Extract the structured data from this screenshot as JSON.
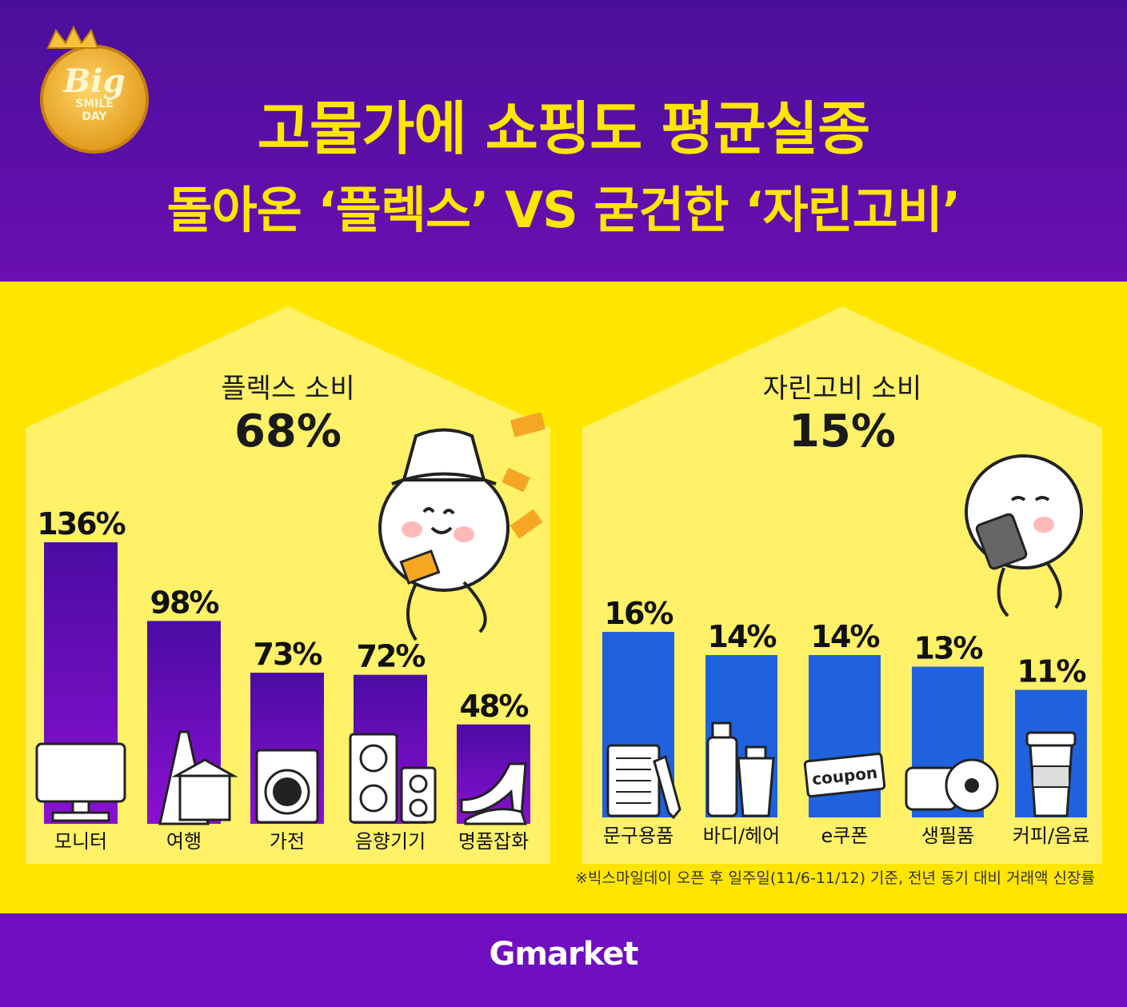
{
  "header": {
    "title_line1": "고물가에 쇼핑도 평균실종",
    "title_line2": "돌아온 ‘플렉스’ VS 굳건한 ‘자린고비’",
    "badge_text": [
      "Big",
      "SMILE",
      "DAY"
    ]
  },
  "colors": {
    "header_bg_top": "#4a0f99",
    "header_bg_bottom": "#6a0fb2",
    "panel_yellow": "#ffe500",
    "house_yellow": "#fff168",
    "title_yellow": "#ffe600",
    "flex_bar_top": "#4b0ca3",
    "flex_bar_bottom": "#8a10d2",
    "saving_bar": "#2062dd",
    "footer_bg": "#6f0fc0"
  },
  "chart_data": [
    {
      "type": "bar",
      "title": "플렉스 소비",
      "total": "68%",
      "categories": [
        "모니터",
        "여행",
        "가전",
        "음향기기",
        "명품잡화"
      ],
      "values": [
        136,
        98,
        73,
        72,
        48
      ],
      "value_labels": [
        "136%",
        "98%",
        "73%",
        "72%",
        "48%"
      ],
      "icons": [
        "monitor-icon",
        "eiffel-tower-icon",
        "washing-machine-icon",
        "speaker-icon",
        "high-heel-shoe-icon"
      ],
      "ylim": [
        0,
        140
      ],
      "grid": false,
      "bar_color": "#6a0fbf"
    },
    {
      "type": "bar",
      "title": "자린고비 소비",
      "total": "15%",
      "categories": [
        "문구용품",
        "바디/헤어",
        "e쿠폰",
        "생필품",
        "커피/음료"
      ],
      "values": [
        16,
        14,
        14,
        13,
        11
      ],
      "value_labels": [
        "16%",
        "14%",
        "14%",
        "13%",
        "11%"
      ],
      "icons": [
        "stationery-icon",
        "body-care-bottle-icon",
        "coupon-icon",
        "tissue-roll-icon",
        "coffee-cup-icon"
      ],
      "coupon_text": "coupon",
      "ylim": [
        0,
        18
      ],
      "grid": false,
      "bar_color": "#2062dd"
    }
  ],
  "footnote": "※빅스마일데이 오픈 후 일주일(11/6-11/12) 기준, 전년 동기 대비 거래액 신장률",
  "footer": {
    "logo": "Gmarket"
  }
}
